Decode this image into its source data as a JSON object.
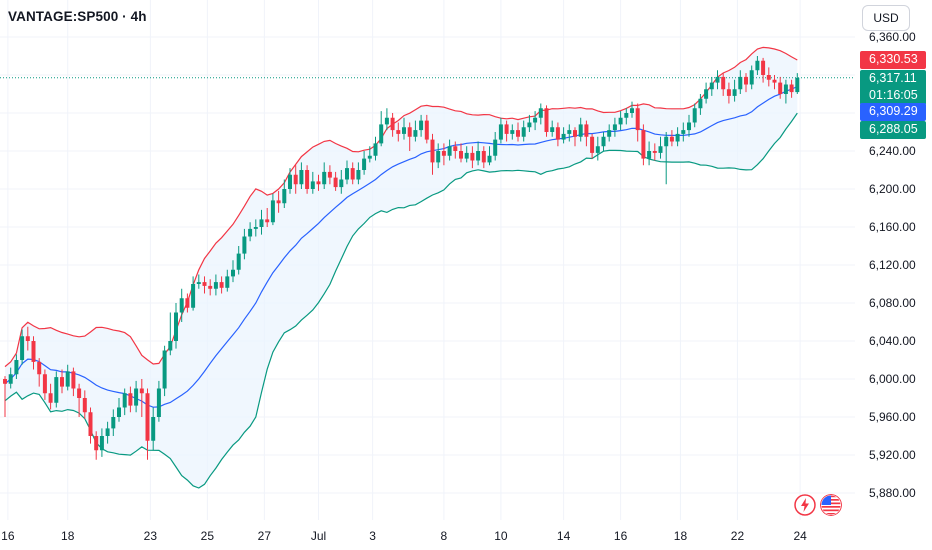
{
  "header": {
    "symbol": "VANTAGE:SP500 · 4h"
  },
  "currency": "USD",
  "colors": {
    "up": "#089981",
    "down": "#f23645",
    "upper_band": "#f23645",
    "basis": "#2962ff",
    "lower_band": "#089981",
    "band_fill": "#eaf3fd",
    "last_price_line": "#089981"
  },
  "price_tags": {
    "upper": {
      "value": "6,330.53",
      "color": "#f23645"
    },
    "last": {
      "value": "6,317.11",
      "countdown": "01:16:05",
      "color": "#089981"
    },
    "basis": {
      "value": "6,309.29",
      "color": "#2962ff"
    },
    "lower": {
      "value": "6,288.05",
      "color": "#089981"
    }
  },
  "icons": [
    "lightning-icon",
    "us-flag-icon"
  ],
  "chart_data": {
    "type": "candlestick",
    "indicator": "Bollinger Bands",
    "ylim": [
      5865,
      6380
    ],
    "y_ticks": [
      "6,360.00",
      "6,320.00",
      "6,280.00",
      "6,240.00",
      "6,200.00",
      "6,160.00",
      "6,120.00",
      "6,080.00",
      "6,040.00",
      "6,000.00",
      "5,960.00",
      "5,920.00",
      "5,880.00"
    ],
    "y_tick_values": [
      6360,
      6320,
      6280,
      6240,
      6200,
      6160,
      6120,
      6080,
      6040,
      6000,
      5960,
      5920,
      5880
    ],
    "x_ticks": [
      "16",
      "18",
      "23",
      "25",
      "27",
      "Jul",
      "3",
      "8",
      "10",
      "14",
      "16",
      "18",
      "22",
      "24"
    ],
    "x_tick_bars": [
      0.5,
      11,
      25.5,
      35.5,
      45.5,
      55,
      64.5,
      77,
      87,
      98,
      108,
      118.5,
      128.5,
      139.5
    ],
    "candles": [
      [
        6000,
        5995,
        6003,
        5960
      ],
      [
        5995,
        6005,
        6012,
        5990
      ],
      [
        6005,
        6020,
        6026,
        6000
      ],
      [
        6020,
        6045,
        6052,
        6015
      ],
      [
        6045,
        6040,
        6055,
        6030
      ],
      [
        6040,
        6018,
        6045,
        6010
      ],
      [
        6018,
        6005,
        6022,
        5992
      ],
      [
        6005,
        5985,
        6010,
        5978
      ],
      [
        5985,
        5975,
        5995,
        5968
      ],
      [
        5975,
        6002,
        6008,
        5970
      ],
      [
        6002,
        5992,
        6010,
        5985
      ],
      [
        5992,
        6008,
        6015,
        5988
      ],
      [
        6008,
        5990,
        6012,
        5982
      ],
      [
        5990,
        5980,
        5995,
        5960
      ],
      [
        5980,
        5965,
        5988,
        5958
      ],
      [
        5965,
        5940,
        5970,
        5932
      ],
      [
        5940,
        5925,
        5945,
        5915
      ],
      [
        5925,
        5940,
        5948,
        5918
      ],
      [
        5940,
        5948,
        5955,
        5932
      ],
      [
        5948,
        5960,
        5968,
        5940
      ],
      [
        5960,
        5970,
        5980,
        5955
      ],
      [
        5970,
        5985,
        5990,
        5962
      ],
      [
        5985,
        5972,
        5992,
        5965
      ],
      [
        5972,
        5990,
        5998,
        5965
      ],
      [
        5990,
        5985,
        6000,
        5960
      ],
      [
        5985,
        5935,
        5990,
        5915
      ],
      [
        5935,
        5960,
        5970,
        5925
      ],
      [
        5960,
        5990,
        5998,
        5955
      ],
      [
        5990,
        6030,
        6035,
        5982
      ],
      [
        6030,
        6040,
        6070,
        6025
      ],
      [
        6040,
        6070,
        6080,
        6032
      ],
      [
        6070,
        6085,
        6095,
        6060
      ],
      [
        6085,
        6075,
        6090,
        6070
      ],
      [
        6075,
        6100,
        6108,
        6072
      ],
      [
        6100,
        6102,
        6110,
        6095
      ],
      [
        6102,
        6098,
        6108,
        6090
      ],
      [
        6098,
        6095,
        6105,
        6088
      ],
      [
        6095,
        6102,
        6110,
        6088
      ],
      [
        6102,
        6096,
        6108,
        6090
      ],
      [
        6096,
        6108,
        6115,
        6092
      ],
      [
        6108,
        6115,
        6125,
        6102
      ],
      [
        6115,
        6132,
        6140,
        6110
      ],
      [
        6132,
        6150,
        6158,
        6126
      ],
      [
        6150,
        6158,
        6165,
        6145
      ],
      [
        6158,
        6160,
        6168,
        6150
      ],
      [
        6160,
        6168,
        6178,
        6152
      ],
      [
        6168,
        6165,
        6180,
        6160
      ],
      [
        6165,
        6188,
        6195,
        6162
      ],
      [
        6188,
        6185,
        6198,
        6175
      ],
      [
        6185,
        6200,
        6210,
        6180
      ],
      [
        6200,
        6215,
        6222,
        6195
      ],
      [
        6215,
        6205,
        6225,
        6195
      ],
      [
        6205,
        6220,
        6228,
        6200
      ],
      [
        6220,
        6200,
        6225,
        6195
      ],
      [
        6200,
        6208,
        6218,
        6195
      ],
      [
        6208,
        6205,
        6215,
        6198
      ],
      [
        6205,
        6218,
        6228,
        6200
      ],
      [
        6218,
        6212,
        6225,
        6205
      ],
      [
        6212,
        6202,
        6218,
        6198
      ],
      [
        6202,
        6210,
        6220,
        6195
      ],
      [
        6210,
        6222,
        6230,
        6205
      ],
      [
        6222,
        6210,
        6228,
        6205
      ],
      [
        6210,
        6220,
        6228,
        6205
      ],
      [
        6220,
        6232,
        6240,
        6215
      ],
      [
        6232,
        6235,
        6245,
        6228
      ],
      [
        6235,
        6248,
        6255,
        6230
      ],
      [
        6248,
        6268,
        6282,
        6245
      ],
      [
        6268,
        6275,
        6285,
        6262
      ],
      [
        6275,
        6262,
        6280,
        6255
      ],
      [
        6262,
        6258,
        6270,
        6250
      ],
      [
        6258,
        6265,
        6275,
        6252
      ],
      [
        6265,
        6255,
        6270,
        6240
      ],
      [
        6255,
        6262,
        6272,
        6250
      ],
      [
        6262,
        6272,
        6278,
        6255
      ],
      [
        6272,
        6252,
        6278,
        6248
      ],
      [
        6252,
        6228,
        6258,
        6215
      ],
      [
        6228,
        6240,
        6248,
        6222
      ],
      [
        6240,
        6235,
        6248,
        6225
      ],
      [
        6235,
        6245,
        6252,
        6230
      ],
      [
        6245,
        6240,
        6250,
        6232
      ],
      [
        6240,
        6232,
        6248,
        6228
      ],
      [
        6232,
        6238,
        6245,
        6228
      ],
      [
        6238,
        6230,
        6245,
        6222
      ],
      [
        6230,
        6240,
        6250,
        6225
      ],
      [
        6240,
        6228,
        6245,
        6222
      ],
      [
        6228,
        6235,
        6245,
        6225
      ],
      [
        6235,
        6252,
        6260,
        6230
      ],
      [
        6252,
        6268,
        6275,
        6248
      ],
      [
        6268,
        6258,
        6272,
        6250
      ],
      [
        6258,
        6262,
        6268,
        6252
      ],
      [
        6262,
        6255,
        6270,
        6250
      ],
      [
        6255,
        6265,
        6272,
        6250
      ],
      [
        6265,
        6270,
        6278,
        6260
      ],
      [
        6270,
        6275,
        6282,
        6262
      ],
      [
        6275,
        6285,
        6290,
        6268
      ],
      [
        6285,
        6260,
        6288,
        6255
      ],
      [
        6260,
        6265,
        6272,
        6255
      ],
      [
        6265,
        6252,
        6270,
        6245
      ],
      [
        6252,
        6258,
        6265,
        6248
      ],
      [
        6258,
        6262,
        6268,
        6250
      ],
      [
        6262,
        6255,
        6265,
        6245
      ],
      [
        6255,
        6268,
        6275,
        6250
      ],
      [
        6268,
        6255,
        6272,
        6245
      ],
      [
        6255,
        6238,
        6258,
        6232
      ],
      [
        6238,
        6245,
        6255,
        6230
      ],
      [
        6245,
        6255,
        6260,
        6240
      ],
      [
        6255,
        6262,
        6268,
        6250
      ],
      [
        6262,
        6268,
        6275,
        6255
      ],
      [
        6268,
        6275,
        6282,
        6262
      ],
      [
        6275,
        6280,
        6285,
        6268
      ],
      [
        6280,
        6285,
        6292,
        6275
      ],
      [
        6285,
        6262,
        6290,
        6250
      ],
      [
        6262,
        6232,
        6268,
        6225
      ],
      [
        6232,
        6240,
        6250,
        6225
      ],
      [
        6240,
        6238,
        6248,
        6230
      ],
      [
        6238,
        6245,
        6255,
        6232
      ],
      [
        6245,
        6255,
        6260,
        6205
      ],
      [
        6255,
        6250,
        6262,
        6245
      ],
      [
        6250,
        6258,
        6265,
        6245
      ],
      [
        6258,
        6262,
        6270,
        6250
      ],
      [
        6262,
        6270,
        6278,
        6255
      ],
      [
        6270,
        6285,
        6290,
        6265
      ],
      [
        6285,
        6295,
        6300,
        6278
      ],
      [
        6295,
        6305,
        6312,
        6290
      ],
      [
        6305,
        6312,
        6318,
        6298
      ],
      [
        6312,
        6318,
        6325,
        6305
      ],
      [
        6318,
        6305,
        6322,
        6298
      ],
      [
        6305,
        6298,
        6312,
        6290
      ],
      [
        6298,
        6305,
        6315,
        6292
      ],
      [
        6305,
        6318,
        6325,
        6300
      ],
      [
        6318,
        6310,
        6322,
        6302
      ],
      [
        6310,
        6325,
        6330,
        6305
      ],
      [
        6325,
        6335,
        6340,
        6320
      ],
      [
        6335,
        6320,
        6338,
        6312
      ],
      [
        6320,
        6315,
        6328,
        6308
      ],
      [
        6315,
        6312,
        6320,
        6305
      ],
      [
        6312,
        6300,
        6318,
        6295
      ],
      [
        6300,
        6310,
        6315,
        6290
      ],
      [
        6310,
        6302,
        6315,
        6296
      ],
      [
        6302,
        6317,
        6322,
        6300
      ]
    ]
  }
}
